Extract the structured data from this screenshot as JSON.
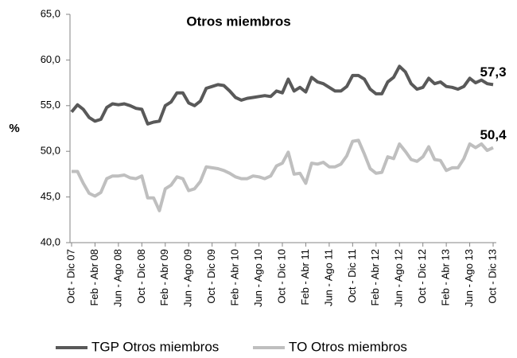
{
  "chart_data": {
    "type": "line",
    "title": "Otros miembros",
    "y_label": "%",
    "categories": [
      "Oct - Dic 07",
      null,
      null,
      null,
      "Feb - Abr 08",
      null,
      null,
      null,
      "Jun - Ago 08",
      null,
      null,
      null,
      "Oct - Dic 08",
      null,
      null,
      null,
      "Feb - Abr 09",
      null,
      null,
      null,
      "Jun - Ago 09",
      null,
      null,
      null,
      "Oct - Dic 09",
      null,
      null,
      null,
      "Feb - Abr 10",
      null,
      null,
      null,
      "Jun - Ago 10",
      null,
      null,
      null,
      "Oct - Dic 10",
      null,
      null,
      null,
      "Feb - Abr 11",
      null,
      null,
      null,
      "Jun - Ago 11",
      null,
      null,
      null,
      "Oct - Dic 11",
      null,
      null,
      null,
      "Feb - Abr 12",
      null,
      null,
      null,
      "Jun - Ago 12",
      null,
      null,
      null,
      "Oct - Dic 12",
      null,
      null,
      null,
      "Feb - Abr 13",
      null,
      null,
      null,
      "Jun - Ago 13",
      null,
      null,
      null,
      "Oct - Dic 13"
    ],
    "series": [
      {
        "name": "TGP Otros miembros",
        "color": "#595959",
        "values": [
          54.3,
          55.1,
          54.6,
          53.7,
          53.3,
          53.5,
          54.8,
          55.2,
          55.1,
          55.2,
          55.0,
          54.7,
          54.6,
          53.0,
          53.2,
          53.3,
          55.0,
          55.4,
          56.4,
          56.4,
          55.3,
          55.0,
          55.5,
          56.9,
          57.1,
          57.3,
          57.2,
          56.6,
          55.9,
          55.6,
          55.8,
          55.9,
          56.0,
          56.1,
          56.0,
          56.6,
          56.4,
          57.9,
          56.6,
          57.0,
          56.5,
          58.1,
          57.6,
          57.4,
          57.0,
          56.6,
          56.6,
          57.1,
          58.3,
          58.3,
          57.9,
          56.8,
          56.3,
          56.3,
          57.6,
          58.1,
          59.3,
          58.7,
          57.4,
          56.8,
          57.0,
          58.0,
          57.4,
          57.6,
          57.1,
          57.0,
          56.8,
          57.1,
          58.0,
          57.5,
          57.8,
          57.4,
          57.3
        ],
        "value_labels": [
          null,
          null,
          null,
          null,
          null,
          null,
          null,
          null,
          null,
          null,
          null,
          null,
          null,
          null,
          null,
          null,
          null,
          null,
          null,
          null,
          null,
          null,
          null,
          null,
          null,
          null,
          null,
          null,
          null,
          null,
          null,
          null,
          null,
          null,
          null,
          null,
          null,
          null,
          null,
          null,
          null,
          null,
          null,
          null,
          null,
          null,
          null,
          null,
          null,
          null,
          null,
          null,
          null,
          null,
          null,
          null,
          null,
          null,
          null,
          null,
          null,
          null,
          null,
          null,
          null,
          null,
          null,
          null,
          null,
          null,
          null,
          null,
          "57,3"
        ]
      },
      {
        "name": "TO Otros miembros",
        "color": "#bfbfbf",
        "values": [
          47.8,
          47.8,
          46.5,
          45.4,
          45.1,
          45.5,
          47.0,
          47.3,
          47.3,
          47.4,
          47.1,
          47.0,
          47.3,
          44.9,
          44.9,
          43.5,
          45.9,
          46.3,
          47.2,
          47.0,
          45.7,
          45.9,
          46.7,
          48.3,
          48.2,
          48.1,
          47.9,
          47.6,
          47.2,
          47.0,
          47.0,
          47.3,
          47.2,
          47.0,
          47.3,
          48.4,
          48.7,
          49.9,
          47.5,
          47.6,
          46.5,
          48.7,
          48.6,
          48.8,
          48.3,
          48.3,
          48.6,
          49.5,
          51.1,
          51.2,
          49.7,
          48.1,
          47.6,
          47.7,
          49.4,
          49.2,
          50.8,
          50.0,
          49.1,
          48.9,
          49.4,
          50.5,
          49.1,
          49.0,
          47.9,
          48.2,
          48.2,
          49.2,
          50.8,
          50.4,
          50.8,
          50.1,
          50.4
        ],
        "value_labels": [
          null,
          null,
          null,
          null,
          null,
          null,
          null,
          null,
          null,
          null,
          null,
          null,
          null,
          null,
          null,
          null,
          null,
          null,
          null,
          null,
          null,
          null,
          null,
          null,
          null,
          null,
          null,
          null,
          null,
          null,
          null,
          null,
          null,
          null,
          null,
          null,
          null,
          null,
          null,
          null,
          null,
          null,
          null,
          null,
          null,
          null,
          null,
          null,
          null,
          null,
          null,
          null,
          null,
          null,
          null,
          null,
          null,
          null,
          null,
          null,
          null,
          null,
          null,
          null,
          null,
          null,
          null,
          null,
          null,
          null,
          null,
          null,
          "50,4"
        ]
      }
    ],
    "ylim": [
      40,
      65
    ],
    "yticks": [
      {
        "value": 40,
        "label": "40,0"
      },
      {
        "value": 45,
        "label": "45,0"
      },
      {
        "value": 50,
        "label": "50,0"
      },
      {
        "value": 55,
        "label": "55,0"
      },
      {
        "value": 60,
        "label": "60,0"
      },
      {
        "value": 65,
        "label": "65,0"
      }
    ],
    "grid": false,
    "legend": "bottom"
  }
}
